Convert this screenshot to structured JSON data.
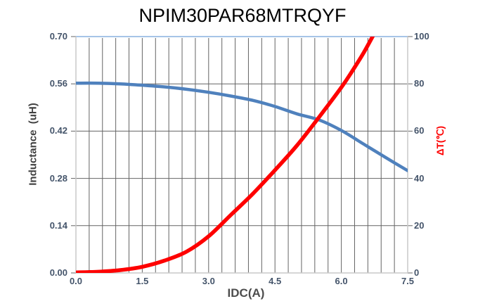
{
  "chart_data": {
    "type": "line",
    "title": "NPIM30PAR68MTRQYF",
    "x_axis": {
      "label": "IDC(A)",
      "min": 0,
      "max": 7.5,
      "tick_labels": [
        "0.0",
        "1.5",
        "3.0",
        "4.5",
        "6.0",
        "7.5"
      ],
      "minor_gridline_step": 0.3
    },
    "y_left_axis": {
      "label": "Inductance  (uH)",
      "min": 0,
      "max": 0.7,
      "tick_labels": [
        "0.70",
        "0.56",
        "0.42",
        "0.28",
        "0.14",
        "0.00"
      ]
    },
    "y_right_axis": {
      "label": "ΔT(℃)",
      "min": 0,
      "max": 100,
      "tick_labels": [
        "100",
        "80",
        "60",
        "40",
        "20",
        "0"
      ]
    },
    "grid": {
      "vertical_minor": true,
      "horizontal_major": true
    },
    "legend": "none",
    "series": [
      {
        "name": "Inductance",
        "axis": "left",
        "color": "#4f81bd",
        "stroke_width": 4.5,
        "x": [
          0,
          0.5,
          1.0,
          1.5,
          2.0,
          2.5,
          3.0,
          3.5,
          4.0,
          4.5,
          5.0,
          5.5,
          6.0,
          6.5,
          7.0,
          7.5
        ],
        "y": [
          0.562,
          0.562,
          0.56,
          0.556,
          0.551,
          0.544,
          0.535,
          0.524,
          0.511,
          0.493,
          0.471,
          0.453,
          0.422,
          0.382,
          0.342,
          0.303
        ]
      },
      {
        "name": "Temperature rise",
        "axis": "right",
        "color": "#fe0000",
        "stroke_width": 5.5,
        "x": [
          0,
          0.5,
          1.0,
          1.5,
          2.0,
          2.5,
          3.0,
          3.5,
          4.0,
          4.5,
          5.0,
          5.5,
          6.0,
          6.25,
          6.5,
          6.75
        ],
        "y": [
          0.2,
          0.5,
          1.2,
          2.6,
          5.2,
          9.0,
          15.5,
          24.5,
          33.5,
          43.5,
          54.0,
          66.0,
          78.5,
          85.5,
          93.0,
          101.5
        ]
      }
    ],
    "colors": {
      "grid": "#646464",
      "plot_border_top": "#a6c4e7",
      "plot_border": "#c9c9c9",
      "tick_text": "#44546a",
      "title_text": "#000000"
    }
  }
}
